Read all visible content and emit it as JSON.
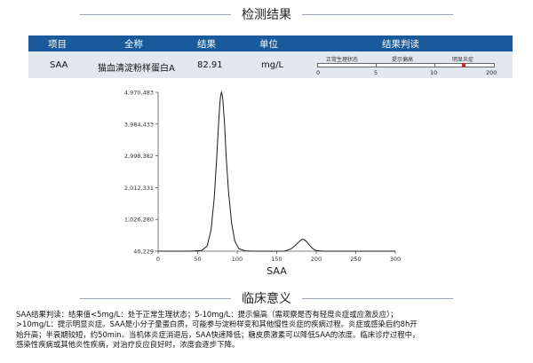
{
  "result_section": {
    "title": "检测结果"
  },
  "table": {
    "headers": [
      "项目",
      "全称",
      "结果",
      "单位",
      "结果判读"
    ],
    "row": {
      "item": "SAA",
      "full_name": "猫血清淀粉样蛋白A",
      "result": "82.91",
      "unit": "mg/L"
    },
    "scale": {
      "zones": [
        "正常生理状态",
        "提示偏高",
        "明显炎症"
      ],
      "ticks": [
        "0",
        "5",
        "10",
        "200"
      ],
      "marker_value": 82.91,
      "marker_color": "#d4262a"
    }
  },
  "chart_data": {
    "type": "line",
    "title": "",
    "xlabel": "SAA",
    "ylabel": "",
    "xlim": [
      0,
      300
    ],
    "ylim": [
      40229,
      4970483
    ],
    "x_ticks": [
      "0",
      "50",
      "100",
      "150",
      "200",
      "250",
      "300"
    ],
    "y_ticks": [
      "40,229",
      "1,026,280",
      "2,012,331",
      "2,998,382",
      "3,984,433",
      "4,970,483"
    ],
    "series": [
      {
        "x": [
          0,
          20,
          40,
          55,
          62,
          67,
          71,
          74,
          76,
          78,
          79,
          80,
          81,
          82,
          84,
          86,
          89,
          93,
          97,
          102,
          110,
          120,
          135,
          150,
          160,
          168,
          174,
          178,
          181,
          183,
          185,
          188,
          192,
          196,
          200,
          208,
          220,
          240,
          270,
          300
        ],
        "y": [
          40229,
          40229,
          40500,
          60000,
          200000,
          700000,
          1700000,
          2900000,
          3800000,
          4600000,
          4850000,
          4970483,
          4900000,
          4700000,
          4000000,
          3000000,
          1900000,
          900000,
          350000,
          120000,
          50000,
          40500,
          40229,
          40229,
          45000,
          110000,
          230000,
          330000,
          390000,
          410000,
          395000,
          330000,
          210000,
          110000,
          60000,
          42000,
          40229,
          40229,
          40229,
          40229
        ]
      }
    ],
    "line_color": "#1a1a1a",
    "grid": false
  },
  "clinical_section": {
    "title": "临床意义"
  },
  "interpretation": {
    "lines": [
      "SAA结果判读：结果值<5mg/L：处于正常生理状态；5-10mg/L：提示偏高（需观察是否有轻度炎症或应激反应）；",
      ">10mg/L：提示明显炎症。SAA是小分子量蛋白质，可能参与淀粉样变和其他慢性炎症的疾病过程。炎症或感染后约8h开",
      "始升高；半衰期较短，约50min。当机体炎症消退后，SAA快速降低；糖皮质激素可以降低SAA的浓度。临床诊疗过程中，",
      "感染性疾病或其他炎性疾病，对治疗反应良好时，浓度会逐步下降。"
    ]
  }
}
